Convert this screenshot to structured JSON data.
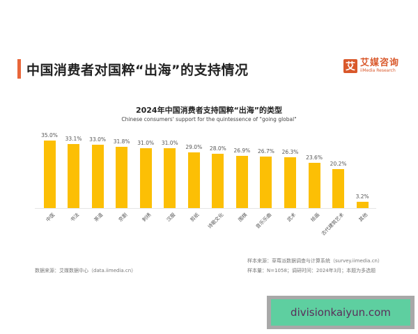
{
  "header": {
    "title": "中国消费者对国粹“出海”的支持情况",
    "accent_color": "#e8663a"
  },
  "logo": {
    "mark": "艾",
    "name_cn": "艾媒咨询",
    "name_en": "iiMedia Research",
    "color": "#d9582b"
  },
  "chart_data": {
    "type": "bar",
    "title": "2024年中国消费者支持国粹“出海”的类型",
    "subtitle": "Chinese consumers' support for the quintessence of \"going global\"",
    "categories": [
      "中医",
      "书法",
      "茶道",
      "京剧",
      "刺绣",
      "汉服",
      "剪纸",
      "诗歌文化",
      "围棋",
      "音乐乐曲",
      "武术",
      "绘画",
      "古代建筑艺术",
      "其他"
    ],
    "values": [
      35.0,
      33.1,
      33.0,
      31.8,
      31.0,
      31.0,
      29.0,
      28.0,
      26.9,
      26.7,
      26.3,
      23.6,
      20.2,
      3.2
    ],
    "value_labels": [
      "35.0%",
      "33.1%",
      "33.0%",
      "31.8%",
      "31.0%",
      "31.0%",
      "29.0%",
      "28.0%",
      "26.9%",
      "26.7%",
      "26.3%",
      "23.6%",
      "20.2%",
      "3.2%"
    ],
    "xlabel": "",
    "ylabel": "",
    "ylim": [
      0,
      35
    ],
    "grid": false,
    "legend": null,
    "bar_color": "#fcbf05"
  },
  "notes": {
    "data_source": "数据来源：艾媒数据中心（data.iimedia.cn）",
    "sample_source": "样本来源：草莓派数据调查与计算系统（survey.iimedia.cn）",
    "sample_size": "样本量：N=1058；调研时间：2024年3月；本题为多选题"
  },
  "watermark": {
    "text": "divisionkaiyun.com"
  }
}
